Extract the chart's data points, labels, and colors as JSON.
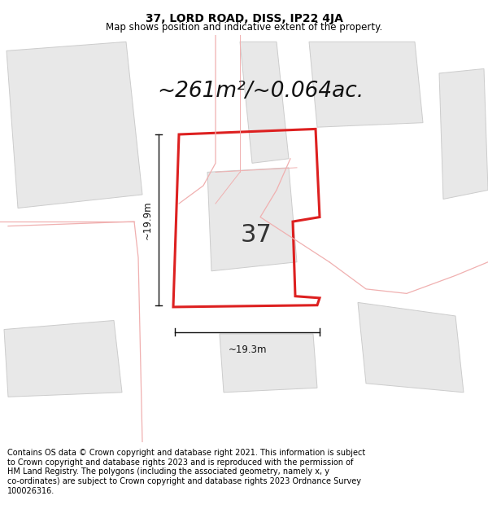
{
  "title": "37, LORD ROAD, DISS, IP22 4JA",
  "subtitle": "Map shows position and indicative extent of the property.",
  "area_text": "~261m²/~0.064ac.",
  "label_37": "37",
  "dim_height": "~19.9m",
  "dim_width": "~19.3m",
  "footer": "Contains OS data © Crown copyright and database right 2021. This information is subject to Crown copyright and database rights 2023 and is reproduced with the permission of HM Land Registry. The polygons (including the associated geometry, namely x, y co-ordinates) are subject to Crown copyright and database rights 2023 Ordnance Survey 100026316.",
  "bg_color": "#ffffff",
  "map_bg": "#ffffff",
  "bldg_fill": "#e8e8e8",
  "bldg_edge": "#cccccc",
  "plot_outline_color": "#dd2020",
  "road_color": "#f0b0b0",
  "title_fontsize": 10,
  "subtitle_fontsize": 8.5,
  "area_fontsize": 19,
  "label_fontsize": 22,
  "footer_fontsize": 7.0,
  "dim_fontsize": 8.5
}
